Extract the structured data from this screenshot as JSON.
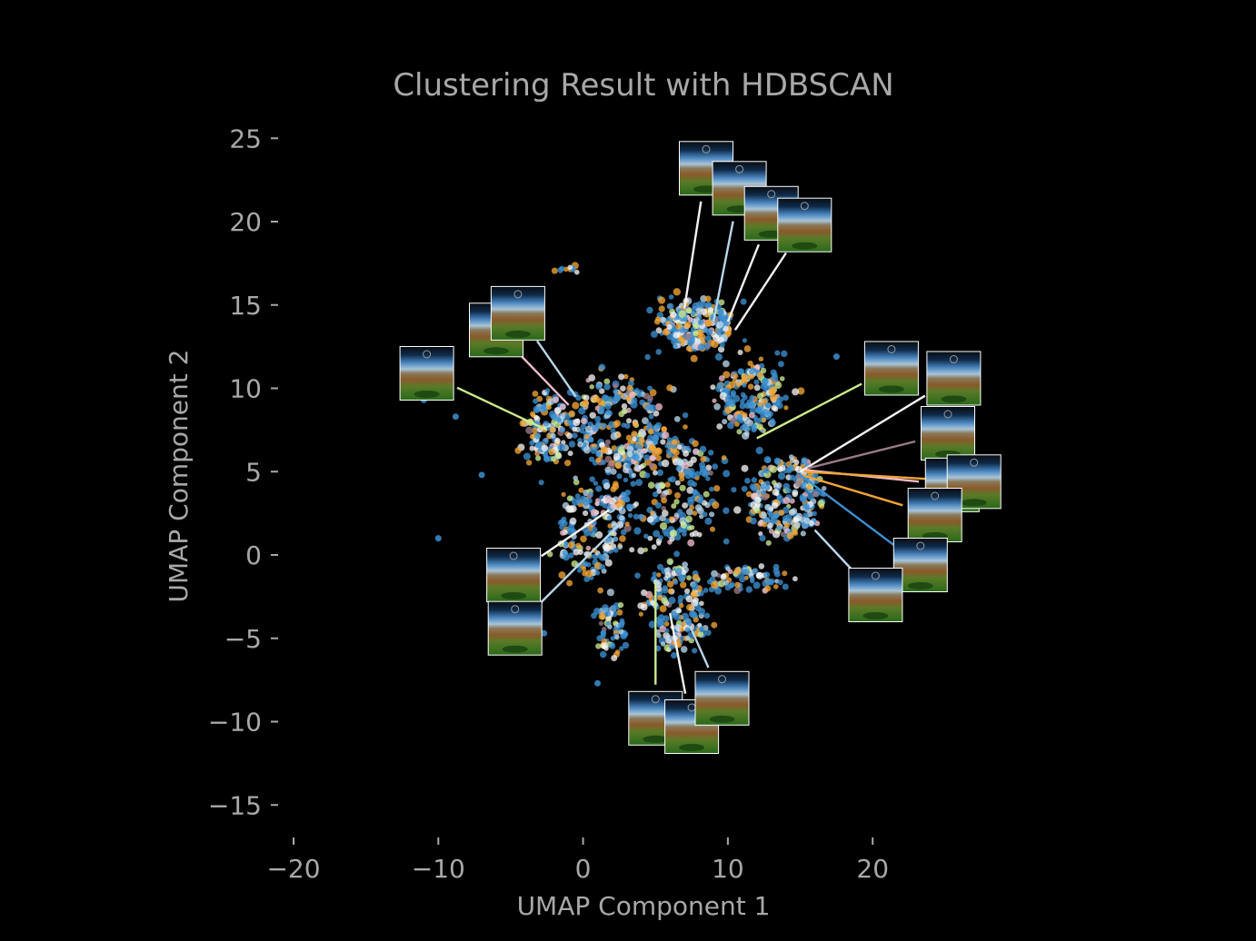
{
  "chart_data": {
    "type": "scatter",
    "title": "Clustering Result with HDBSCAN",
    "xlabel": "UMAP Component 1",
    "ylabel": "UMAP Component 2",
    "xlim": [
      -21,
      29
    ],
    "ylim": [
      -17,
      27
    ],
    "xticks": [
      -20,
      -10,
      0,
      10,
      20
    ],
    "xtick_labels": [
      "−20",
      "−10",
      "0",
      "10",
      "20"
    ],
    "yticks": [
      25,
      20,
      15,
      10,
      5,
      0,
      -5,
      -10,
      -15
    ],
    "ytick_labels": [
      "25",
      "20",
      "15",
      "10",
      "5",
      "0",
      "−5",
      "−10",
      "−15"
    ],
    "grid": false,
    "background": "#000000",
    "palette": [
      "#3c8fd0",
      "#f2a535",
      "#f4f4f4",
      "#b9d6ea",
      "#ccea8e",
      "#f2bcc9",
      "#9b7a88"
    ],
    "clusters": [
      {
        "center": [
          8,
          13.8
        ],
        "spread": [
          2.2,
          1.3
        ],
        "count": 260
      },
      {
        "center": [
          -2.5,
          7.5
        ],
        "spread": [
          1.3,
          1.8
        ],
        "count": 140
      },
      {
        "center": [
          2.5,
          8
        ],
        "spread": [
          3,
          2.5
        ],
        "count": 260
      },
      {
        "center": [
          11.5,
          9.5
        ],
        "spread": [
          2.2,
          1.8
        ],
        "count": 200
      },
      {
        "center": [
          14,
          3.5
        ],
        "spread": [
          2.2,
          2.2
        ],
        "count": 240
      },
      {
        "center": [
          5.5,
          4
        ],
        "spread": [
          3.5,
          3
        ],
        "count": 300
      },
      {
        "center": [
          0.5,
          1.5
        ],
        "spread": [
          2,
          2.5
        ],
        "count": 160
      },
      {
        "center": [
          6.5,
          -3
        ],
        "spread": [
          2,
          2.5
        ],
        "count": 180
      },
      {
        "center": [
          2,
          -4.5
        ],
        "spread": [
          0.8,
          1.5
        ],
        "count": 60
      },
      {
        "center": [
          11.5,
          -1.5
        ],
        "spread": [
          2.5,
          0.6
        ],
        "count": 70
      },
      {
        "center": [
          -1,
          17.2
        ],
        "spread": [
          0.7,
          0.15
        ],
        "count": 10
      }
    ],
    "outliers": [
      [
        -10,
        1
      ],
      [
        -7,
        4.8
      ],
      [
        -8.8,
        8.3
      ],
      [
        17.5,
        11.9
      ],
      [
        1,
        -7.7
      ],
      [
        -2.7,
        -4.7
      ],
      [
        -11,
        9.3
      ]
    ],
    "thumbnails": [
      {
        "img": [
          8.5,
          23.2
        ],
        "pt": [
          7,
          14.8
        ]
      },
      {
        "img": [
          10.8,
          22
        ],
        "pt": [
          9,
          14
        ]
      },
      {
        "img": [
          13,
          20.5
        ],
        "pt": [
          10,
          14
        ]
      },
      {
        "img": [
          15.3,
          19.8
        ],
        "pt": [
          10.5,
          13.5
        ]
      },
      {
        "img": [
          -6,
          13.5
        ],
        "pt": [
          -1,
          9
        ]
      },
      {
        "img": [
          -4.5,
          14.5
        ],
        "pt": [
          -0.5,
          9.5
        ]
      },
      {
        "img": [
          -10.8,
          10.9
        ],
        "pt": [
          -2.5,
          7.5
        ]
      },
      {
        "img": [
          21.3,
          11.2
        ],
        "pt": [
          12,
          7
        ]
      },
      {
        "img": [
          25.6,
          10.6
        ],
        "pt": [
          15,
          5
        ]
      },
      {
        "img": [
          25.2,
          7.3
        ],
        "pt": [
          15.5,
          5.2
        ]
      },
      {
        "img": [
          25.5,
          4.2
        ],
        "pt": [
          15.3,
          5.1
        ]
      },
      {
        "img": [
          27,
          4.4
        ],
        "pt": [
          15.3,
          5
        ]
      },
      {
        "img": [
          24.3,
          2.4
        ],
        "pt": [
          15.1,
          4.8
        ]
      },
      {
        "img": [
          23.3,
          -0.6
        ],
        "pt": [
          15,
          4.8
        ]
      },
      {
        "img": [
          20.2,
          -2.4
        ],
        "pt": [
          16,
          1.5
        ]
      },
      {
        "img": [
          -4.8,
          -1.2
        ],
        "pt": [
          1.8,
          2.7
        ]
      },
      {
        "img": [
          -4.7,
          -4.4
        ],
        "pt": [
          2.7,
          2
        ]
      },
      {
        "img": [
          5,
          -9.8
        ],
        "pt": [
          5,
          -1.6
        ]
      },
      {
        "img": [
          7.5,
          -10.3
        ],
        "pt": [
          6,
          -3.5
        ]
      },
      {
        "img": [
          9.6,
          -8.6
        ],
        "pt": [
          7.4,
          -4.3
        ]
      }
    ]
  }
}
